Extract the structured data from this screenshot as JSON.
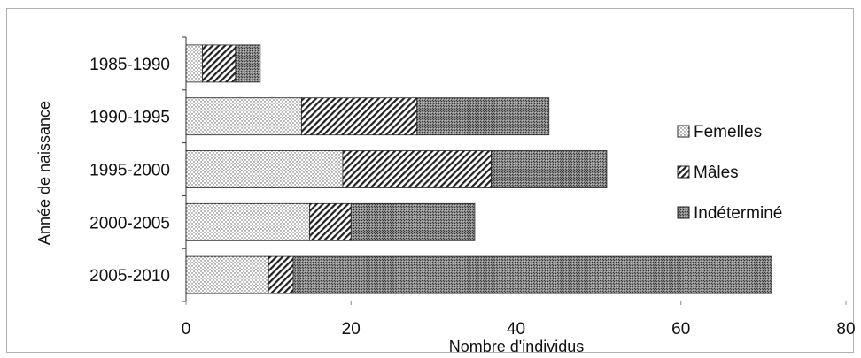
{
  "chart_data": {
    "type": "bar",
    "orientation": "horizontal",
    "stacked": true,
    "categories": [
      "1985-1990",
      "1990-1995",
      "1995-2000",
      "2000-2005",
      "2005-2010"
    ],
    "series": [
      {
        "name": "Femelles",
        "values": [
          2,
          14,
          19,
          15,
          10
        ],
        "pattern": "dots"
      },
      {
        "name": "Mâles",
        "values": [
          4,
          14,
          18,
          5,
          3
        ],
        "pattern": "hatch"
      },
      {
        "name": "Indéterminé",
        "values": [
          3,
          16,
          14,
          15,
          58
        ],
        "pattern": "crosshatch"
      }
    ],
    "xlabel": "Nombre d'individus",
    "ylabel": "Année de naissance",
    "xlim": [
      0,
      80
    ],
    "xticks": [
      0,
      20,
      40,
      60,
      80
    ],
    "grid": false,
    "legend_position": "right"
  }
}
